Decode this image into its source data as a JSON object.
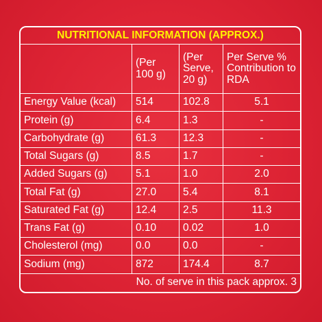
{
  "title": "NUTRITIONAL INFORMATION (APPROX.)",
  "headers": {
    "col1": "",
    "col2": "(Per 100 g)",
    "col3": "(Per Serve, 20 g)",
    "col4": "Per Serve % Contribution to RDA"
  },
  "rows": [
    {
      "nutrient": "Energy Value (kcal)",
      "per100": "514",
      "perServe": "102.8",
      "rda": "5.1"
    },
    {
      "nutrient": "Protein (g)",
      "per100": "6.4",
      "perServe": "1.3",
      "rda": "-"
    },
    {
      "nutrient": "Carbohydrate (g)",
      "per100": "61.3",
      "perServe": "12.3",
      "rda": "-"
    },
    {
      "nutrient": "Total Sugars (g)",
      "per100": "8.5",
      "perServe": "1.7",
      "rda": "-"
    },
    {
      "nutrient": "Added Sugars (g)",
      "per100": "5.1",
      "perServe": "1.0",
      "rda": "2.0"
    },
    {
      "nutrient": "Total Fat (g)",
      "per100": "27.0",
      "perServe": "5.4",
      "rda": "8.1"
    },
    {
      "nutrient": "Saturated Fat (g)",
      "per100": "12.4",
      "perServe": "2.5",
      "rda": "11.3"
    },
    {
      "nutrient": "Trans Fat (g)",
      "per100": "0.10",
      "perServe": "0.02",
      "rda": "1.0"
    },
    {
      "nutrient": "Cholesterol (mg)",
      "per100": "0.0",
      "perServe": "0.0",
      "rda": "-"
    },
    {
      "nutrient": "Sodium (mg)",
      "per100": "872",
      "perServe": "174.4",
      "rda": "8.7"
    }
  ],
  "footer": "No. of serve in this pack approx. 3",
  "colors": {
    "background": "#dd2334",
    "text": "#ffffff",
    "title": "#fff200",
    "border": "#ffffff"
  }
}
